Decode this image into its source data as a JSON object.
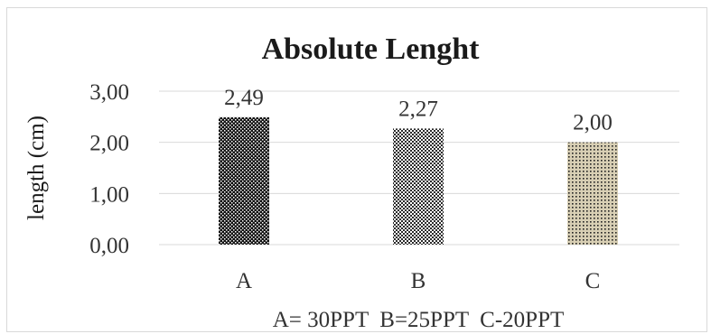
{
  "chart_data": {
    "type": "bar",
    "title": "Absolute Lenght",
    "ylabel": "length (cm)",
    "xlabel": "",
    "categories": [
      "A",
      "B",
      "C"
    ],
    "values": [
      2.49,
      2.27,
      2.0
    ],
    "value_labels": [
      "2,49",
      "2,27",
      "2,00"
    ],
    "ylim": [
      0,
      3
    ],
    "yticks": [
      0,
      1,
      2,
      3
    ],
    "ytick_labels": [
      "0,00",
      "1,00",
      "2,00",
      "3,00"
    ],
    "grid": true,
    "legend": "none",
    "note": "A= 30PPT  B=25PPT  C-20PPT",
    "bar_patterns": [
      "dense-black-dots",
      "medium-checker",
      "light-tan-dots"
    ],
    "colors": {
      "gridline": "#d9d9d9",
      "bar_dark": "#1a1a1a",
      "bar_light": "#ffffff",
      "bar_tan": "#d8cfb4"
    }
  }
}
